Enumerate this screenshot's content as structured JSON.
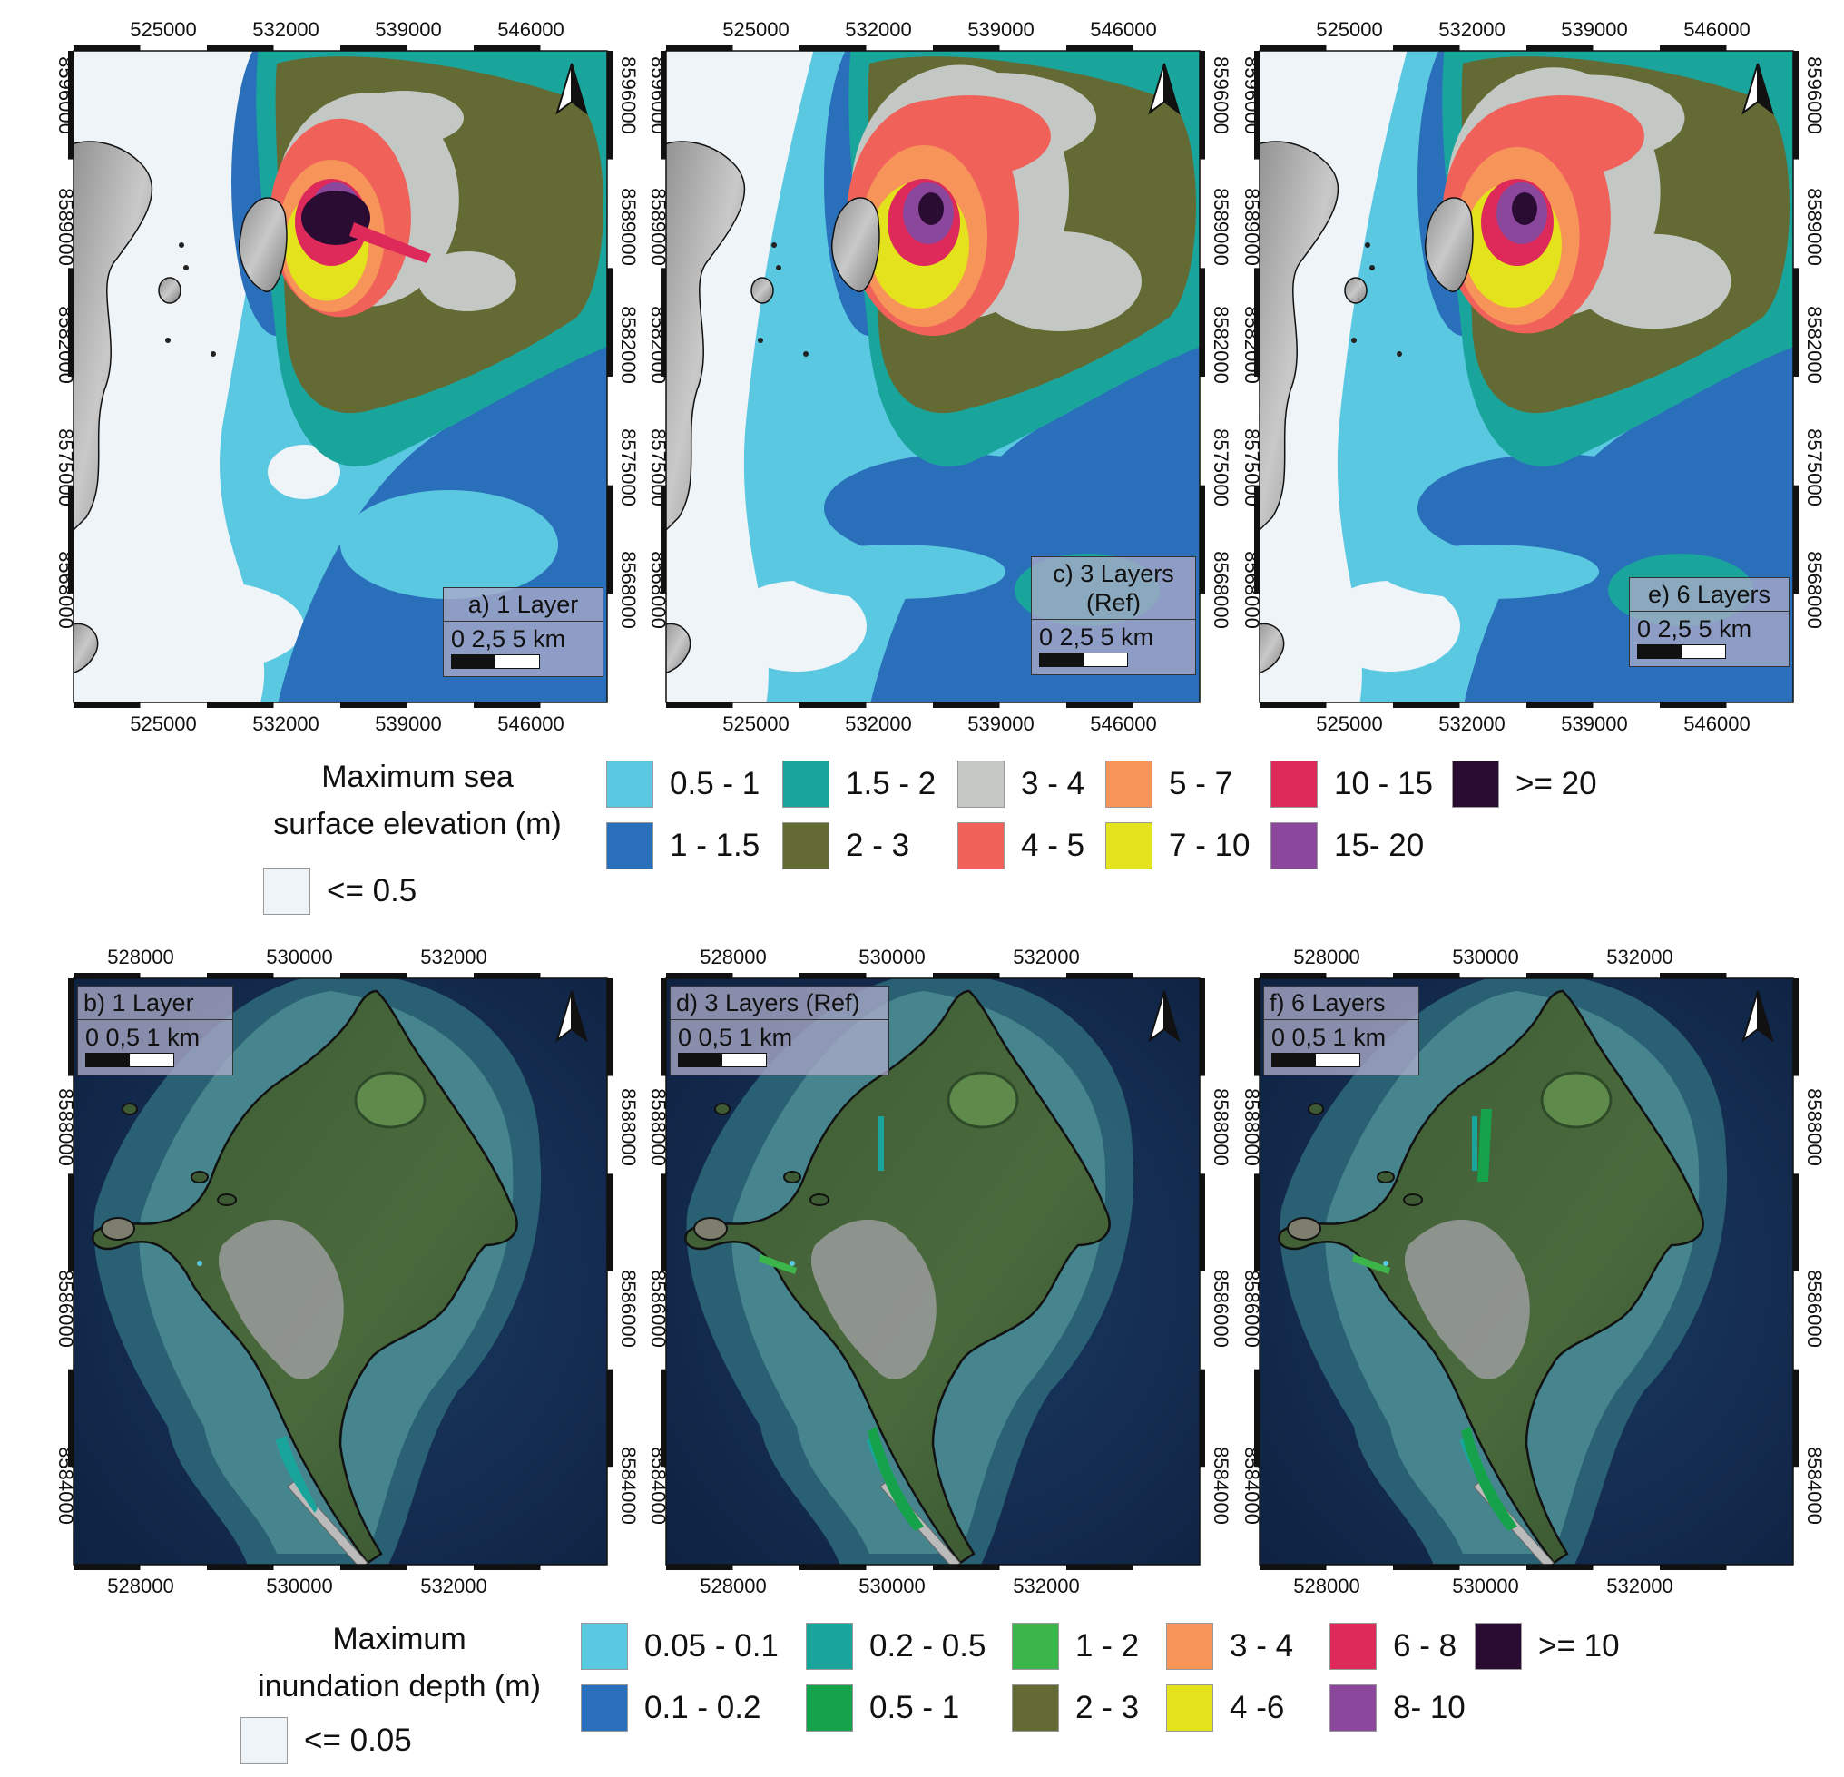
{
  "top_panels": [
    {
      "id": "a",
      "title": "a) 1 Layer",
      "scale": "0  2,5  5 km",
      "x_ticks": [
        "525000",
        "532000",
        "539000",
        "546000"
      ],
      "y_ticks": [
        "8596000",
        "8589000",
        "8582000",
        "8575000",
        "8568000"
      ]
    },
    {
      "id": "c",
      "title": "c) 3 Layers (Ref)",
      "scale": "0  2,5  5 km",
      "x_ticks": [
        "525000",
        "532000",
        "539000",
        "546000"
      ],
      "y_ticks": [
        "8596000",
        "8589000",
        "8582000",
        "8575000",
        "8568000"
      ]
    },
    {
      "id": "e",
      "title": "e) 6 Layers",
      "scale": "0  2,5  5 km",
      "x_ticks": [
        "525000",
        "532000",
        "539000",
        "546000"
      ],
      "y_ticks": [
        "8596000",
        "8589000",
        "8582000",
        "8575000",
        "8568000"
      ]
    }
  ],
  "bottom_panels": [
    {
      "id": "b",
      "title": "b) 1 Layer",
      "scale": "0  0,5  1 km",
      "x_ticks": [
        "528000",
        "530000",
        "532000"
      ],
      "y_ticks": [
        "8588000",
        "8586000",
        "8584000"
      ]
    },
    {
      "id": "d",
      "title": "d) 3 Layers (Ref)",
      "scale": "0  0,5  1 km",
      "x_ticks": [
        "528000",
        "530000",
        "532000"
      ],
      "y_ticks": [
        "8588000",
        "8586000",
        "8584000"
      ]
    },
    {
      "id": "f",
      "title": "f) 6 Layers",
      "scale": "0  0,5  1 km",
      "x_ticks": [
        "528000",
        "530000",
        "532000"
      ],
      "y_ticks": [
        "8588000",
        "8586000",
        "8584000"
      ]
    }
  ],
  "legend_top": {
    "title_line1": "Maximum sea",
    "title_line2": "surface elevation (m)",
    "items": [
      {
        "label": "<= 0.5",
        "color": "#eef4f8"
      },
      {
        "label": "0.5 - 1",
        "color": "#5bc8e2"
      },
      {
        "label": "1 - 1.5",
        "color": "#2a6fba"
      },
      {
        "label": "1.5 - 2",
        "color": "#1aa59c"
      },
      {
        "label": "2 - 3",
        "color": "#636a33"
      },
      {
        "label": "3 - 4",
        "color": "#c4c8c4"
      },
      {
        "label": "4 - 5",
        "color": "#f0615a"
      },
      {
        "label": "5 - 7",
        "color": "#f79459"
      },
      {
        "label": "7 - 10",
        "color": "#e4e21c"
      },
      {
        "label": "10 - 15",
        "color": "#de2a5b"
      },
      {
        "label": "15- 20",
        "color": "#8a479c"
      },
      {
        "label": ">= 20",
        "color": "#2a0c33"
      }
    ]
  },
  "legend_bottom": {
    "title_line1": "Maximum",
    "title_line2": "inundation depth (m)",
    "items": [
      {
        "label": "<= 0.05",
        "color": "#eef4f8"
      },
      {
        "label": "0.05 - 0.1",
        "color": "#5bc8e2"
      },
      {
        "label": "0.1 - 0.2",
        "color": "#2a6fba"
      },
      {
        "label": "0.2 - 0.5",
        "color": "#1aa59c"
      },
      {
        "label": "0.5 - 1",
        "color": "#16a24a"
      },
      {
        "label": "1 - 2",
        "color": "#3cb54a"
      },
      {
        "label": "2 - 3",
        "color": "#636a33"
      },
      {
        "label": "3 - 4",
        "color": "#f79459"
      },
      {
        "label": "4 -6",
        "color": "#e4e21c"
      },
      {
        "label": "6 - 8",
        "color": "#de2a5b"
      },
      {
        "label": "8- 10",
        "color": "#8a479c"
      },
      {
        "label": ">= 10",
        "color": "#2a0c33"
      }
    ]
  }
}
